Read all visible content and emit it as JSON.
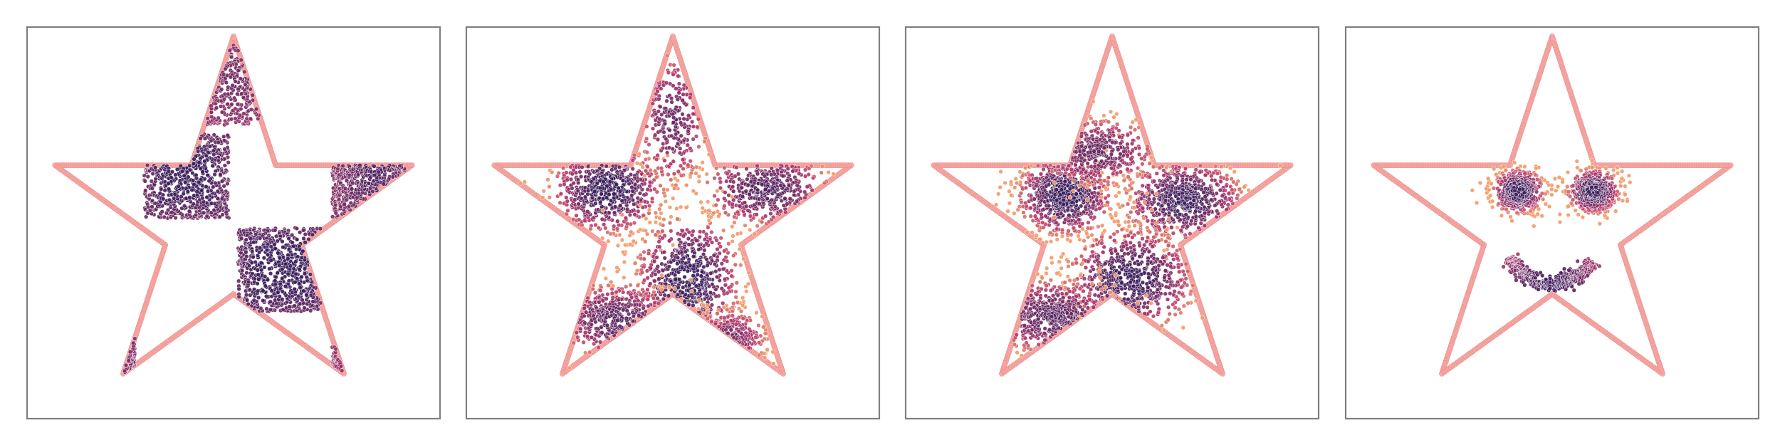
{
  "figure": {
    "colors": {
      "boundary": "#f6a6a1",
      "boundary_stroke": "#e98d8b",
      "frame": "#7f7f7f",
      "background": "#ffffff",
      "density_dense": "#3b1e5c",
      "density_mid": "#b5386b",
      "density_sparse": "#f39b68"
    }
  },
  "chart_data": [
    {
      "type": "scatter",
      "panel": "checkerboard",
      "title": "",
      "xlabel": "",
      "ylabel": "",
      "xlim": [
        -1.1,
        1.1
      ],
      "ylim": [
        -1.05,
        1.05
      ],
      "grid": false,
      "legend": "none",
      "boundary": {
        "shape": "five-pointed star",
        "outer_vertices": [
          [
            0,
            1
          ],
          [
            -0.951,
            0.309
          ],
          [
            -0.588,
            -0.809
          ],
          [
            0.588,
            -0.809
          ],
          [
            0.951,
            0.309
          ]
        ],
        "inner_radius": 0.382
      },
      "series": [
        {
          "cluster": "square",
          "center": [
            -0.25,
            0.25
          ],
          "size": [
            0.45,
            0.45
          ],
          "weight": 0.9
        },
        {
          "cluster": "square",
          "center": [
            0.25,
            -0.25
          ],
          "size": [
            0.45,
            0.45
          ],
          "weight": 1.0
        },
        {
          "cluster": "square",
          "center": [
            0.75,
            0.25
          ],
          "size": [
            0.45,
            0.45
          ],
          "weight": 0.55
        },
        {
          "cluster": "square",
          "center": [
            -0.75,
            -0.75
          ],
          "size": [
            0.45,
            0.45
          ],
          "weight": 0.5
        },
        {
          "cluster": "square",
          "center": [
            0.75,
            -0.75
          ],
          "size": [
            0.45,
            0.45
          ],
          "weight": 0.25
        },
        {
          "cluster": "square",
          "center": [
            0,
            0.75
          ],
          "size": [
            0.4,
            0.45
          ],
          "weight": 0.35
        }
      ]
    },
    {
      "type": "scatter",
      "panel": "flow-intermediate-1",
      "title": "",
      "xlabel": "",
      "ylabel": "",
      "xlim": [
        -1.1,
        1.1
      ],
      "ylim": [
        -1.05,
        1.05
      ],
      "grid": false,
      "legend": "none",
      "boundary": {
        "shape": "five-pointed star",
        "outer_vertices": [
          [
            0,
            1
          ],
          [
            -0.951,
            0.309
          ],
          [
            -0.588,
            -0.809
          ],
          [
            0.588,
            -0.809
          ],
          [
            0.951,
            0.309
          ]
        ],
        "inner_radius": 0.382
      },
      "series": [
        {
          "cluster": "blob",
          "center": [
            -0.35,
            0.18
          ],
          "spread": [
            0.15,
            0.12
          ],
          "weight": 1.0
        },
        {
          "cluster": "blob",
          "center": [
            0.08,
            -0.3
          ],
          "spread": [
            0.14,
            0.17
          ],
          "weight": 1.0
        },
        {
          "cluster": "blob",
          "center": [
            0.5,
            0.18
          ],
          "spread": [
            0.17,
            0.1
          ],
          "weight": 0.7
        },
        {
          "cluster": "blob",
          "center": [
            -0.3,
            -0.52
          ],
          "spread": [
            0.17,
            0.1
          ],
          "weight": 0.6
        },
        {
          "cluster": "blob",
          "center": [
            0.0,
            0.55
          ],
          "spread": [
            0.09,
            0.18
          ],
          "weight": 0.45
        },
        {
          "cluster": "blob",
          "center": [
            0.3,
            -0.62
          ],
          "spread": [
            0.1,
            0.08
          ],
          "weight": 0.3
        }
      ]
    },
    {
      "type": "scatter",
      "panel": "flow-intermediate-2",
      "title": "",
      "xlabel": "",
      "ylabel": "",
      "xlim": [
        -1.1,
        1.1
      ],
      "ylim": [
        -1.05,
        1.05
      ],
      "grid": false,
      "legend": "none",
      "boundary": {
        "shape": "five-pointed star",
        "outer_vertices": [
          [
            0,
            1
          ],
          [
            -0.951,
            0.309
          ],
          [
            -0.588,
            -0.809
          ],
          [
            0.588,
            -0.809
          ],
          [
            0.951,
            0.309
          ]
        ],
        "inner_radius": 0.382
      },
      "series": [
        {
          "cluster": "blob",
          "center": [
            -0.25,
            0.15
          ],
          "spread": [
            0.13,
            0.11
          ],
          "weight": 1.0
        },
        {
          "cluster": "blob",
          "center": [
            0.38,
            0.12
          ],
          "spread": [
            0.16,
            0.11
          ],
          "weight": 0.9
        },
        {
          "cluster": "blob",
          "center": [
            0.1,
            -0.3
          ],
          "spread": [
            0.17,
            0.14
          ],
          "weight": 0.9
        },
        {
          "cluster": "blob",
          "center": [
            -0.32,
            -0.5
          ],
          "spread": [
            0.18,
            0.1
          ],
          "weight": 0.6
        },
        {
          "cluster": "blob",
          "center": [
            -0.08,
            0.38
          ],
          "spread": [
            0.16,
            0.09
          ],
          "weight": 0.5
        }
      ]
    },
    {
      "type": "scatter",
      "panel": "smiley-target",
      "title": "",
      "xlabel": "",
      "ylabel": "",
      "xlim": [
        -1.1,
        1.1
      ],
      "ylim": [
        -1.05,
        1.05
      ],
      "grid": false,
      "legend": "none",
      "boundary": {
        "shape": "five-pointed star",
        "outer_vertices": [
          [
            0,
            1
          ],
          [
            -0.951,
            0.309
          ],
          [
            -0.588,
            -0.809
          ],
          [
            0.588,
            -0.809
          ],
          [
            0.951,
            0.309
          ]
        ],
        "inner_radius": 0.382
      },
      "series": [
        {
          "cluster": "blob",
          "center": [
            -0.18,
            0.17
          ],
          "spread": [
            0.07,
            0.06
          ],
          "weight": 1.0
        },
        {
          "cluster": "blob",
          "center": [
            0.22,
            0.17
          ],
          "spread": [
            0.07,
            0.06
          ],
          "weight": 1.0
        },
        {
          "cluster": "arc",
          "center": [
            0.0,
            -0.08
          ],
          "radius": 0.25,
          "angle_range_deg": [
            205,
            330
          ],
          "thickness": 0.035,
          "weight": 1.0
        }
      ]
    }
  ]
}
